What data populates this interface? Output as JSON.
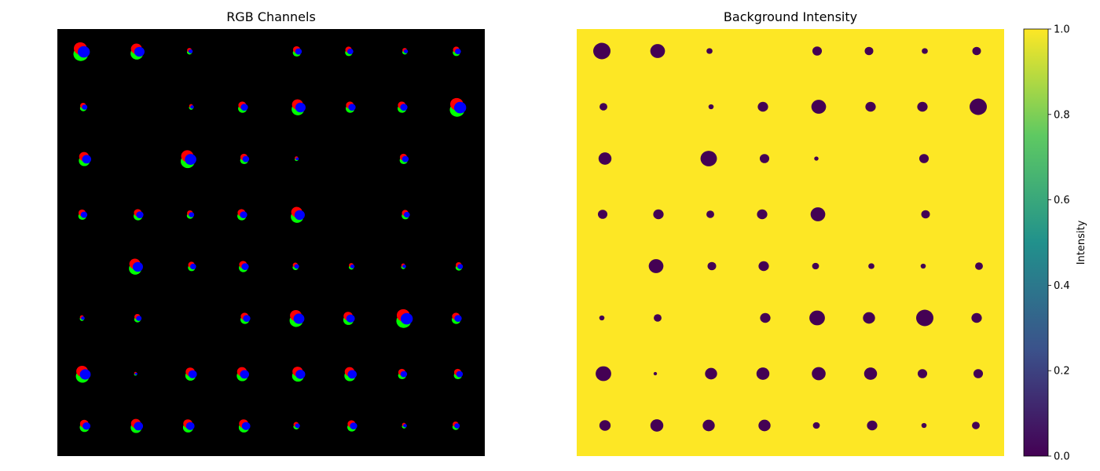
{
  "chart_data": [
    {
      "type": "heatmap",
      "title": "RGB Channels",
      "grid": false,
      "axes": "off",
      "background": "#000000",
      "channel_colors": {
        "red": "#ff0000",
        "green": "#00ff00",
        "blue": "#0000ff"
      },
      "blob_grid": {
        "rows": 8,
        "cols": 8
      },
      "blobs": [
        [
          1,
          0.85,
          0.35,
          0,
          0.55,
          0.5,
          0.35,
          0.5
        ],
        [
          0.45,
          0,
          0.3,
          0.6,
          0.85,
          0.6,
          0.6,
          1
        ],
        [
          0.75,
          0,
          0.95,
          0.55,
          0.25,
          0,
          0.55,
          0
        ],
        [
          0.55,
          0.6,
          0.45,
          0.6,
          0.85,
          0,
          0.5,
          0
        ],
        [
          0,
          0.85,
          0.5,
          0.6,
          0.4,
          0.35,
          0.3,
          0.45
        ],
        [
          0.3,
          0.45,
          0,
          0.6,
          0.9,
          0.7,
          1,
          0.6
        ],
        [
          0.9,
          0.2,
          0.7,
          0.75,
          0.8,
          0.75,
          0.55,
          0.55
        ],
        [
          0.65,
          0.75,
          0.7,
          0.7,
          0.4,
          0.6,
          0.3,
          0.45
        ]
      ]
    },
    {
      "type": "heatmap",
      "title": "Background Intensity",
      "colormap": "viridis",
      "colormap_stops": [
        "#440154",
        "#3b528b",
        "#21918c",
        "#5ec962",
        "#fde725"
      ],
      "background_value": 1.0,
      "blob_value": 0.0,
      "colorbar": {
        "label": "Intensity",
        "range": [
          0.0,
          1.0
        ],
        "ticks": [
          "0.0",
          "0.2",
          "0.4",
          "0.6",
          "0.8",
          "1.0"
        ]
      },
      "grid": false,
      "axes": "off"
    }
  ]
}
